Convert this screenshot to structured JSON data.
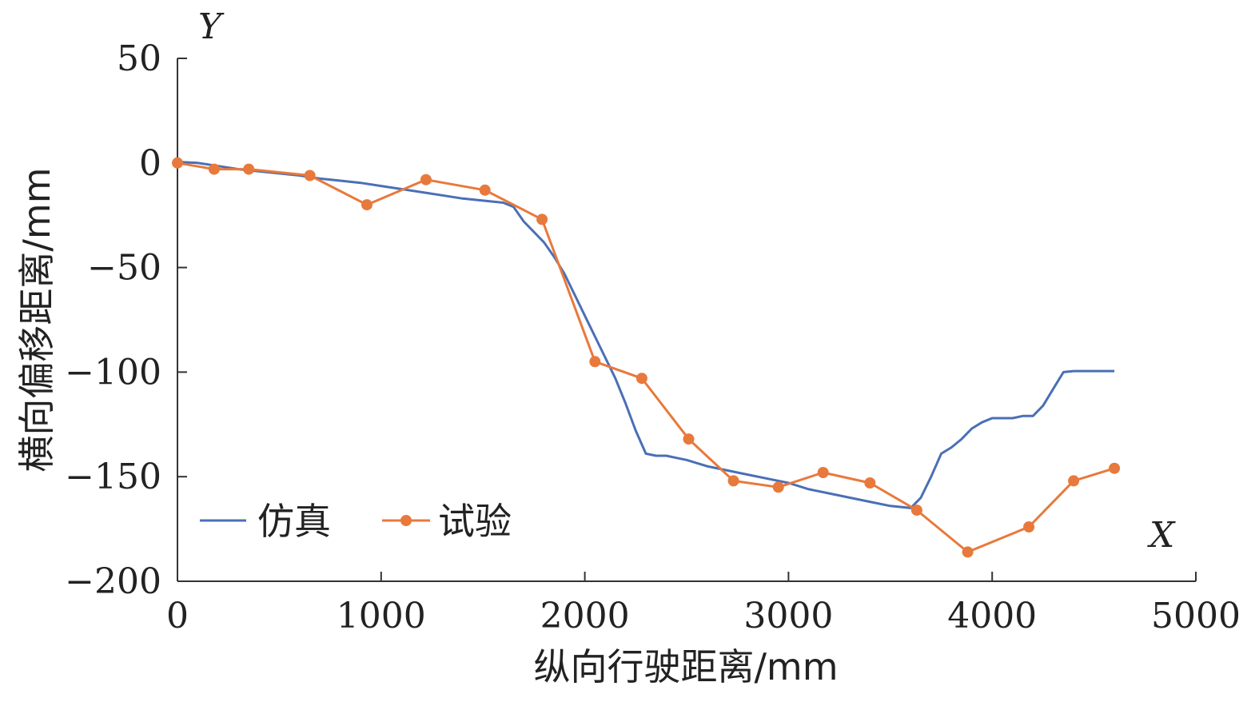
{
  "chart_data": {
    "type": "line",
    "xlabel": "纵向行驶距离/mm",
    "ylabel": "横向偏移距离/mm",
    "x_axis_letter": "X",
    "y_axis_letter": "Y",
    "xlim": [
      0,
      5000
    ],
    "ylim": [
      -200,
      50
    ],
    "x_ticks": [
      0,
      1000,
      2000,
      3000,
      4000,
      5000
    ],
    "y_ticks": [
      50,
      0,
      -50,
      -100,
      -150,
      -200
    ],
    "x_tick_labels": [
      "0",
      "1000",
      "2000",
      "3000",
      "4000",
      "5000"
    ],
    "y_tick_labels": [
      "50",
      "0",
      "−50",
      "−100",
      "−150",
      "−200"
    ],
    "grid": false,
    "legend_position": "bottom-left",
    "series": [
      {
        "name": "仿真",
        "color": "#4a6fb5",
        "markers": false,
        "x": [
          0,
          100,
          200,
          300,
          400,
          500,
          600,
          700,
          800,
          900,
          1000,
          1100,
          1200,
          1300,
          1400,
          1500,
          1600,
          1650,
          1700,
          1750,
          1800,
          1850,
          1900,
          1950,
          2000,
          2050,
          2100,
          2150,
          2200,
          2250,
          2300,
          2350,
          2400,
          2450,
          2500,
          2600,
          2700,
          2800,
          2900,
          3000,
          3100,
          3200,
          3300,
          3400,
          3500,
          3600,
          3650,
          3700,
          3750,
          3800,
          3850,
          3900,
          3950,
          4000,
          4050,
          4100,
          4150,
          4200,
          4250,
          4300,
          4350,
          4400,
          4450,
          4500,
          4550,
          4600
        ],
        "y": [
          0.5,
          0,
          -1.5,
          -3,
          -4,
          -5,
          -6,
          -7.5,
          -8.5,
          -9.5,
          -11,
          -12.5,
          -14,
          -15.5,
          -17,
          -18,
          -19,
          -21,
          -28,
          -33,
          -38,
          -45,
          -53,
          -63,
          -73,
          -83,
          -93,
          -103,
          -115,
          -128,
          -139,
          -140,
          -140,
          -141,
          -142,
          -145,
          -147,
          -149,
          -151,
          -153,
          -156,
          -158,
          -160,
          -162,
          -164,
          -165,
          -160,
          -150,
          -139,
          -136,
          -132,
          -127,
          -124,
          -122,
          -122,
          -122,
          -121,
          -121,
          -116,
          -108,
          -100,
          -99.5,
          -99.5,
          -99.5,
          -99.5,
          -99.5
        ]
      },
      {
        "name": "试验",
        "color": "#e8793c",
        "markers": true,
        "x": [
          0,
          180,
          350,
          650,
          930,
          1220,
          1510,
          1790,
          2050,
          2280,
          2510,
          2730,
          2950,
          3170,
          3400,
          3630,
          3880,
          4180,
          4400,
          4600
        ],
        "y": [
          0,
          -3,
          -3,
          -6,
          -20,
          -8,
          -13,
          -27,
          -95,
          -103,
          -132,
          -152,
          -155,
          -148,
          -153,
          -166,
          -186,
          -174,
          -152,
          -146
        ]
      }
    ]
  }
}
